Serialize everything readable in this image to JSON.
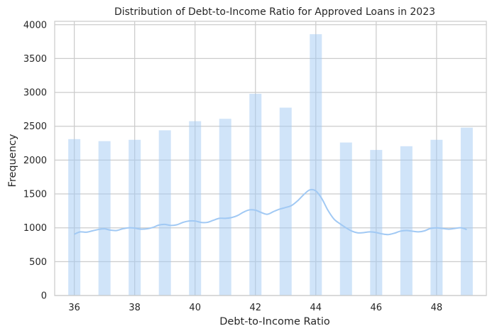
{
  "chart_data": {
    "type": "bar",
    "title": "Distribution of Debt-to-Income Ratio for Approved Loans in 2023",
    "xlabel": "Debt-to-Income Ratio",
    "ylabel": "Frequency",
    "xlim": [
      35.35,
      49.65
    ],
    "ylim": [
      0,
      4050
    ],
    "xticks": [
      36,
      38,
      40,
      42,
      44,
      46,
      48
    ],
    "yticks": [
      0,
      500,
      1000,
      1500,
      2000,
      2500,
      3000,
      3500,
      4000
    ],
    "grid": true,
    "bar_color": "#a1c9f4",
    "bar_opacity": 0.5,
    "kde_color": "#a1c9f4",
    "bars": [
      {
        "x": 36,
        "value": 2310
      },
      {
        "x": 37,
        "value": 2280
      },
      {
        "x": 38,
        "value": 2300
      },
      {
        "x": 39,
        "value": 2440
      },
      {
        "x": 40,
        "value": 2575
      },
      {
        "x": 41,
        "value": 2610
      },
      {
        "x": 42,
        "value": 2980
      },
      {
        "x": 43,
        "value": 2775
      },
      {
        "x": 44,
        "value": 3860
      },
      {
        "x": 45,
        "value": 2260
      },
      {
        "x": 46,
        "value": 2150
      },
      {
        "x": 47,
        "value": 2205
      },
      {
        "x": 48,
        "value": 2300
      },
      {
        "x": 49,
        "value": 2480
      }
    ],
    "kde": {
      "x": [
        36.0,
        36.2,
        36.4,
        36.6,
        36.8,
        37.0,
        37.2,
        37.4,
        37.6,
        37.8,
        38.0,
        38.2,
        38.4,
        38.6,
        38.8,
        39.0,
        39.2,
        39.4,
        39.6,
        39.8,
        40.0,
        40.2,
        40.4,
        40.6,
        40.8,
        41.0,
        41.2,
        41.4,
        41.6,
        41.8,
        42.0,
        42.2,
        42.4,
        42.6,
        42.8,
        43.0,
        43.2,
        43.4,
        43.6,
        43.8,
        44.0,
        44.2,
        44.4,
        44.6,
        44.8,
        45.0,
        45.2,
        45.4,
        45.6,
        45.8,
        46.0,
        46.2,
        46.4,
        46.6,
        46.8,
        47.0,
        47.2,
        47.4,
        47.6,
        47.8,
        48.0,
        48.2,
        48.4,
        48.6,
        48.8,
        49.0
      ],
      "y": [
        905,
        940,
        935,
        955,
        975,
        985,
        965,
        960,
        985,
        1000,
        995,
        980,
        985,
        1005,
        1040,
        1050,
        1035,
        1045,
        1080,
        1100,
        1100,
        1080,
        1080,
        1110,
        1140,
        1140,
        1150,
        1180,
        1230,
        1265,
        1260,
        1225,
        1200,
        1240,
        1275,
        1300,
        1330,
        1400,
        1490,
        1560,
        1545,
        1430,
        1260,
        1130,
        1060,
        1000,
        950,
        925,
        930,
        940,
        930,
        910,
        900,
        920,
        950,
        960,
        950,
        940,
        955,
        990,
        1000,
        990,
        980,
        990,
        1000,
        975
      ]
    }
  }
}
